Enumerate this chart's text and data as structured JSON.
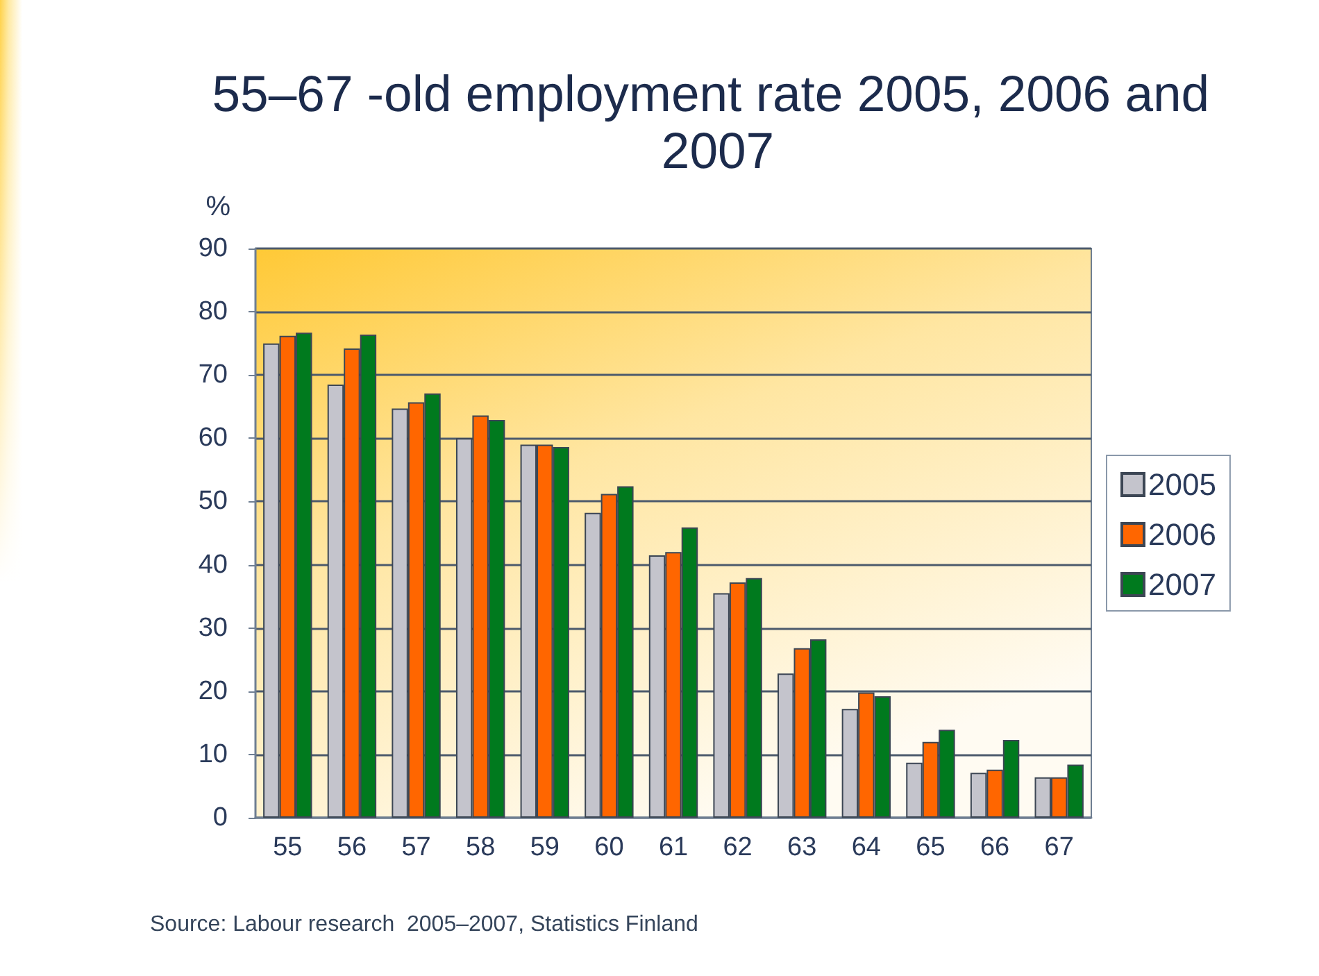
{
  "chart_data": {
    "type": "bar",
    "title": "55–67 -old employment rate 2005, 2006 and 2007",
    "ylabel": "%",
    "categories": [
      "55",
      "56",
      "57",
      "58",
      "59",
      "60",
      "61",
      "62",
      "63",
      "64",
      "65",
      "66",
      "67"
    ],
    "series": [
      {
        "name": "2005",
        "color": "#c4c4cc",
        "values": [
          75,
          68.5,
          64.7,
          60,
          59,
          48.2,
          41.5,
          35.5,
          22.8,
          17.2,
          8.7,
          7.1,
          6.4
        ]
      },
      {
        "name": "2006",
        "color": "#ff6600",
        "values": [
          76.2,
          74.2,
          65.7,
          63.6,
          59,
          51.2,
          42,
          37.2,
          26.8,
          19.8,
          12,
          7.6,
          6.4
        ]
      },
      {
        "name": "2007",
        "color": "#007a1e",
        "values": [
          76.7,
          76.4,
          67.1,
          62.9,
          58.6,
          52.4,
          45.9,
          37.9,
          28.2,
          19.2,
          13.9,
          12.3,
          8.4
        ]
      }
    ],
    "ylim": [
      0,
      90
    ],
    "yticks": [
      0,
      10,
      20,
      30,
      40,
      50,
      60,
      70,
      80,
      90
    ],
    "grid": "y",
    "legend": "right",
    "annotations": [
      "Source: Labour research  2005–2007, Statistics Finland"
    ]
  }
}
